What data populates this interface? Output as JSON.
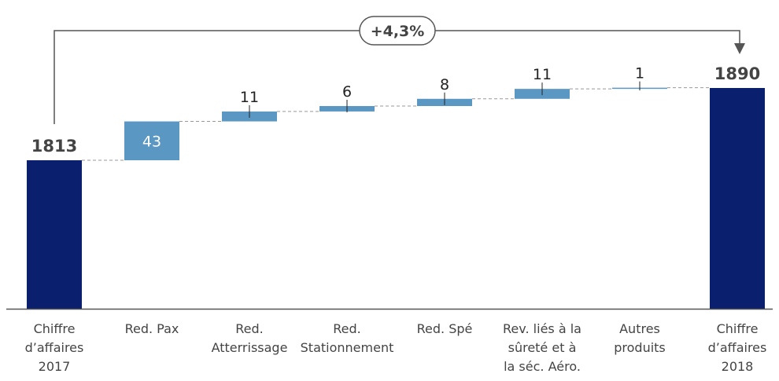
{
  "chart_data": {
    "type": "waterfall",
    "categories": [
      [
        "Chiffre",
        "d’affaires",
        "2017"
      ],
      [
        "Red. Pax"
      ],
      [
        "Red.",
        "Atterrissage"
      ],
      [
        "Red.",
        "Stationnement"
      ],
      [
        "Red. Spé"
      ],
      [
        "Rev. liés à la",
        "sûreté et à",
        "la séc. Aéro."
      ],
      [
        "Autres",
        "produits"
      ],
      [
        "Chiffre",
        "d’affaires",
        "2018"
      ]
    ],
    "start": {
      "label": "1813",
      "value": 1813
    },
    "end": {
      "label": "1890",
      "value": 1890
    },
    "increments": [
      {
        "label": "43",
        "value": 43
      },
      {
        "label": "11",
        "value": 11
      },
      {
        "label": "6",
        "value": 6
      },
      {
        "label": "8",
        "value": 8
      },
      {
        "label": "11",
        "value": 11
      },
      {
        "label": "1",
        "value": 1
      }
    ],
    "growth_label": "+4,3%",
    "ylim": [
      0,
      1890
    ],
    "colors": {
      "total": "#0a1f6e",
      "increment": "#5b97c3",
      "connector": "#999999",
      "axis": "#555555",
      "text": "#444444",
      "value_text": "#222222",
      "arrow": "#555555"
    }
  }
}
